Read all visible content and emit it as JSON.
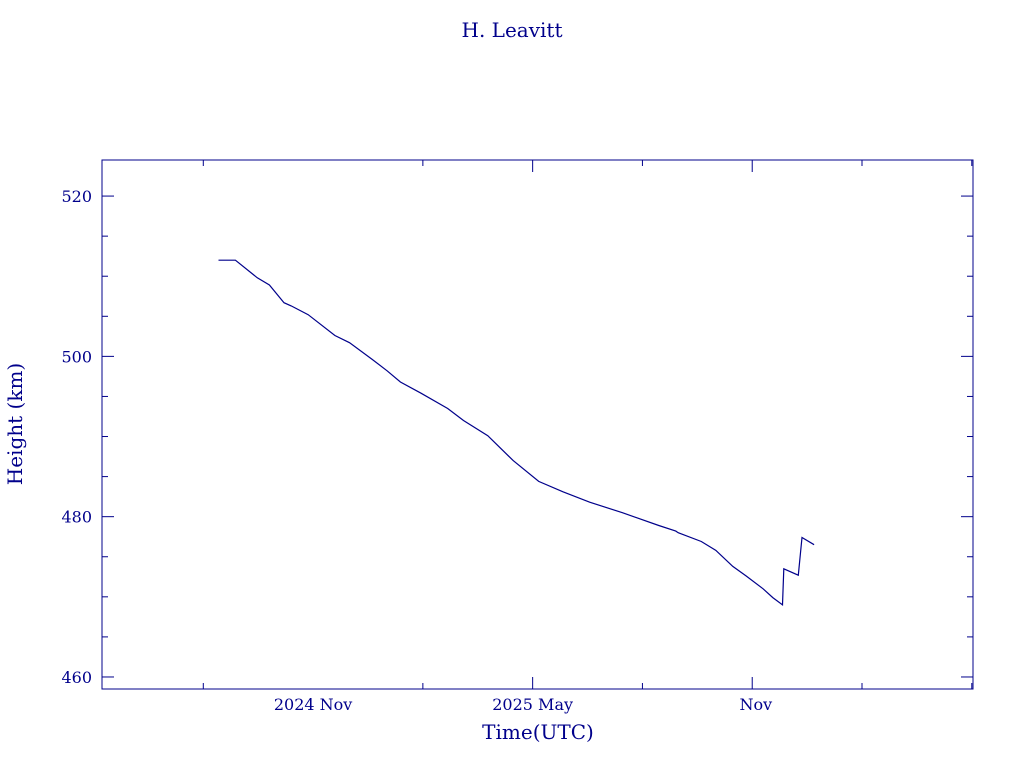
{
  "chart_data": {
    "type": "line",
    "title": "H. Leavitt",
    "xlabel": "Time(UTC)",
    "ylabel": "Height (km)",
    "color": "#00008b",
    "x_ticks": [
      {
        "date": "2024-11-01",
        "label": "2024 Nov"
      },
      {
        "date": "2025-05-01",
        "label": "2025 May"
      },
      {
        "date": "2025-11-01",
        "label": "Nov"
      }
    ],
    "y_ticks": [
      460,
      480,
      500,
      520
    ],
    "xlim": [
      "2024-05-11",
      "2026-04-29"
    ],
    "ylim": [
      458.5,
      524.5
    ],
    "grid": false,
    "series": [
      {
        "x": [
          "2024-08-15",
          "2024-08-29",
          "2024-09-16",
          "2024-09-26",
          "2024-10-08",
          "2024-10-14",
          "2024-10-28",
          "2024-11-19",
          "2024-12-01",
          "2024-12-20",
          "2025-01-01",
          "2025-01-12",
          "2025-01-29",
          "2025-02-20",
          "2025-03-05",
          "2025-03-25",
          "2025-04-15",
          "2025-05-06",
          "2025-05-26",
          "2025-06-17",
          "2025-07-14",
          "2025-08-13",
          "2025-08-27",
          "2025-08-29",
          "2025-09-17",
          "2025-09-29",
          "2025-10-13",
          "2025-10-24",
          "2025-11-07",
          "2025-11-15",
          "2025-11-23",
          "2025-11-24",
          "2025-12-06",
          "2025-12-09",
          "2025-12-19"
        ],
        "y": [
          512.0,
          512.0,
          509.8,
          508.9,
          506.7,
          506.3,
          505.2,
          502.6,
          501.7,
          499.6,
          498.2,
          496.8,
          495.4,
          493.5,
          492.0,
          490.1,
          487.0,
          484.4,
          483.1,
          481.8,
          480.5,
          478.9,
          478.2,
          478.0,
          476.9,
          475.8,
          473.8,
          472.6,
          471.0,
          469.9,
          469.0,
          473.5,
          472.7,
          477.4,
          476.5
        ]
      }
    ]
  }
}
